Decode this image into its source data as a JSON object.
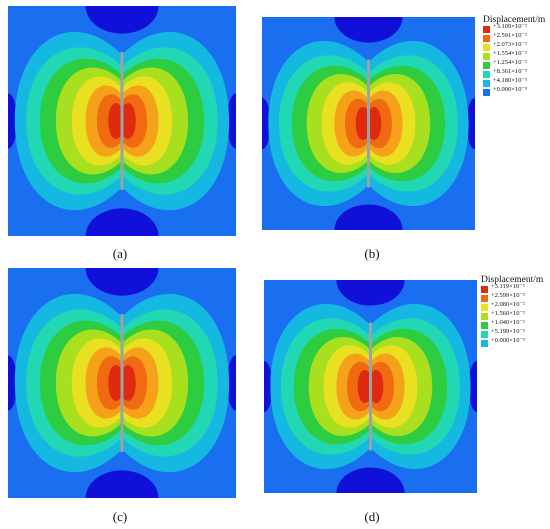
{
  "captions": [
    "(a)",
    "(b)",
    "(c)",
    "(d)"
  ],
  "legends": [
    {
      "title": "Displacement/m",
      "labels": [
        "+3.109×10⁻²",
        "+2.591×10⁻²",
        "+2.073×10⁻²",
        "+1.554×10⁻²",
        "+1.254×10⁻²",
        "+8.361×10⁻³",
        "+4.180×10⁻³",
        "+0.000×10⁻³"
      ]
    },
    {
      "title": "Displacement/m",
      "labels": [
        "+3.119×10⁻²",
        "+2.599×10⁻²",
        "+2.080×10⁻²",
        "+1.560×10⁻²",
        "+1.040×10⁻²",
        "+5.199×10⁻³",
        "+0.000×10⁻³"
      ]
    }
  ],
  "colors": {
    "contour_scale": [
      "#1010d8",
      "#1a6ef0",
      "#14b8e0",
      "#22d8b4",
      "#2ecc40",
      "#a8e020",
      "#e8e020",
      "#f5a21a",
      "#f06a12",
      "#e02a10"
    ],
    "crack": "#9aa4a6"
  }
}
